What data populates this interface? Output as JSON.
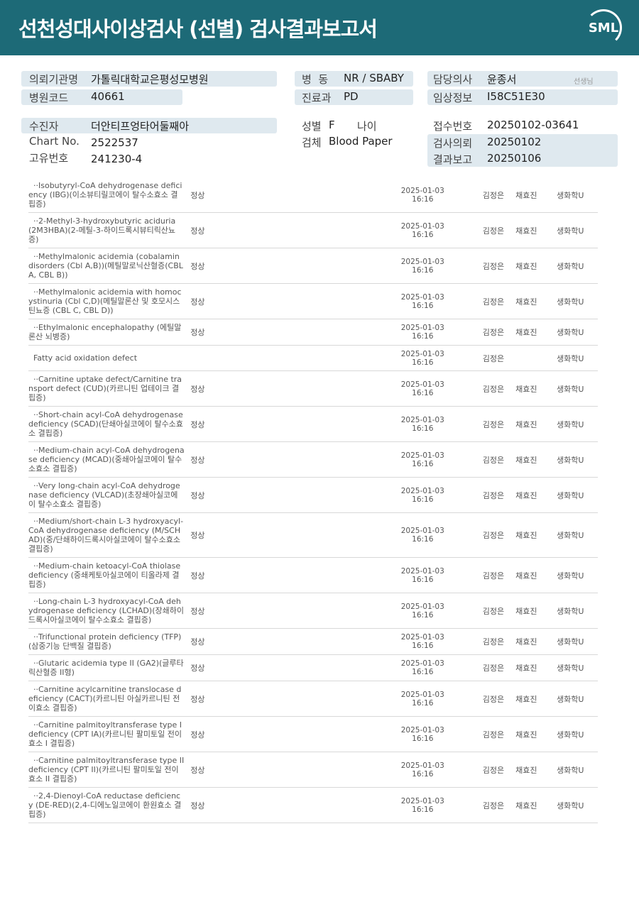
{
  "header": {
    "title": "선천성대사이상검사 (선별) 검사결과보고서",
    "logo": "SML"
  },
  "info": {
    "institution_label": "의뢰기관명",
    "institution": "가톨릭대학교은평성모병원",
    "code_label": "병원코드",
    "code": "40661",
    "ward_label": "병  동",
    "ward": "NR / SBABY",
    "dept_label": "진료과",
    "dept": "PD",
    "doctor_label": "담당의사",
    "doctor": "윤종서",
    "doctor_suffix": "선생님",
    "clinical_label": "임상정보",
    "clinical": "I58C51E30",
    "patient_label": "수진자",
    "patient": "더안티프엉타어둘째아",
    "chart_label": "Chart No.",
    "chart": "2522537",
    "uid_label": "고유번호",
    "uid": "241230-4",
    "sex_label": "성별",
    "sex": "F",
    "age_label": "나이",
    "specimen_label": "검체",
    "specimen": "Blood Paper",
    "receipt_label": "접수번호",
    "receipt": "20250102-03641",
    "request_label": "검사의뢰",
    "request": "20250102",
    "report_label": "결과보고",
    "report": "20250106"
  },
  "rows": [
    {
      "name": "  ··Isobutyryl-CoA dehydrogenase deficiency (IBG)(이소뷰티릴코에이 탈수소효소 결핍증)",
      "result": "정상",
      "date": "2025-01-03",
      "time": "16:16",
      "a": "김정은",
      "b": "채효진",
      "c": "생화학U"
    },
    {
      "name": "  ··2-Methyl-3-hydroxybutyric aciduria (2M3HBA)(2-메틸-3-하이드록시뷰티릭산뇨증)",
      "result": "정상",
      "date": "2025-01-03",
      "time": "16:16",
      "a": "김정은",
      "b": "채효진",
      "c": "생화학U"
    },
    {
      "name": "  ··Methylmalonic acidemia (cobalamin disorders (Cbl A,B))(메틸말로닉산혈증(CBL A, CBL B))",
      "result": "정상",
      "date": "2025-01-03",
      "time": "16:16",
      "a": "김정은",
      "b": "채효진",
      "c": "생화학U"
    },
    {
      "name": "  ··Methylmalonic acidemia with homocystinuria (Cbl C,D)(메틸말론산 및 호모시스틴뇨증 (CBL C, CBL D))",
      "result": "정상",
      "date": "2025-01-03",
      "time": "16:16",
      "a": "김정은",
      "b": "채효진",
      "c": "생화학U"
    },
    {
      "name": "  ··Ethylmalonic encephalopathy (에틸말론산 뇌병증)",
      "result": "정상",
      "date": "2025-01-03",
      "time": "16:16",
      "a": "김정은",
      "b": "채효진",
      "c": "생화학U"
    },
    {
      "name": "  Fatty acid oxidation defect",
      "result": "",
      "date": "2025-01-03",
      "time": "16:16",
      "a": "김정은",
      "b": "",
      "c": "생화학U"
    },
    {
      "name": "  ··Carnitine uptake defect/Carnitine transport defect (CUD)(카르니틴 업테이크 결핍증)",
      "result": "정상",
      "date": "2025-01-03",
      "time": "16:16",
      "a": "김정은",
      "b": "채효진",
      "c": "생화학U"
    },
    {
      "name": "  ··Short-chain acyl-CoA dehydrogenase deficiency (SCAD)(단쇄아실코에이 탈수소효소 결핍증)",
      "result": "정상",
      "date": "2025-01-03",
      "time": "16:16",
      "a": "김정은",
      "b": "채효진",
      "c": "생화학U"
    },
    {
      "name": "  ··Medium-chain acyl-CoA dehydrogenase deficiency (MCAD)(중쇄아실코에이 탈수소효소 결핍증)",
      "result": "정상",
      "date": "2025-01-03",
      "time": "16:16",
      "a": "김정은",
      "b": "채효진",
      "c": "생화학U"
    },
    {
      "name": "  ··Very long-chain acyl-CoA dehydrogenase deficiency (VLCAD)(초장쇄아실코에이 탈수소효소 결핍증)",
      "result": "정상",
      "date": "2025-01-03",
      "time": "16:16",
      "a": "김정은",
      "b": "채효진",
      "c": "생화학U"
    },
    {
      "name": "  ··Medium/short-chain L-3 hydroxyacyl-CoA dehydrogenase deficiency (M/SCHAD)(중/단쇄하이드록시아실코에이 탈수소효소 결핍증)",
      "result": "정상",
      "date": "2025-01-03",
      "time": "16:16",
      "a": "김정은",
      "b": "채효진",
      "c": "생화학U"
    },
    {
      "name": "  ··Medium-chain ketoacyl-CoA thiolase deficiency (중쇄케토아실코에이 티올라제 결핍증)",
      "result": "정상",
      "date": "2025-01-03",
      "time": "16:16",
      "a": "김정은",
      "b": "채효진",
      "c": "생화학U"
    },
    {
      "name": "  ··Long-chain L-3 hydroxyacyl-CoA dehydrogenase deficiency (LCHAD)(장쇄하이드록시아실코에이 탈수소효소 결핍증)",
      "result": "정상",
      "date": "2025-01-03",
      "time": "16:16",
      "a": "김정은",
      "b": "채효진",
      "c": "생화학U"
    },
    {
      "name": "  ··Trifunctional protein deficiency (TFP)(삼중기능 단백질 결핍증)",
      "result": "정상",
      "date": "2025-01-03",
      "time": "16:16",
      "a": "김정은",
      "b": "채효진",
      "c": "생화학U"
    },
    {
      "name": "  ··Glutaric acidemia type II (GA2)(글루타릭산혈증 II형)",
      "result": "정상",
      "date": "2025-01-03",
      "time": "16:16",
      "a": "김정은",
      "b": "채효진",
      "c": "생화학U"
    },
    {
      "name": "  ··Carnitine acylcarnitine translocase deficiency (CACT)(카르니틴 아실카르니틴 전이효소 결핍증)",
      "result": "정상",
      "date": "2025-01-03",
      "time": "16:16",
      "a": "김정은",
      "b": "채효진",
      "c": "생화학U"
    },
    {
      "name": "  ··Carnitine palmitoyltransferase type I deficiency (CPT IA)(카르니틴 팔미토일 전이효소 I 결핍증)",
      "result": "정상",
      "date": "2025-01-03",
      "time": "16:16",
      "a": "김정은",
      "b": "채효진",
      "c": "생화학U"
    },
    {
      "name": "  ··Carnitine palmitoyltransferase type II deficiency (CPT II)(카르니틴 팔미토일 전이효소 II 결핍증)",
      "result": "정상",
      "date": "2025-01-03",
      "time": "16:16",
      "a": "김정은",
      "b": "채효진",
      "c": "생화학U"
    },
    {
      "name": "  ··2,4-Dienoyl-CoA reductase deficiency (DE-RED)(2,4-디에노일코에이 환원효소 결핍증)",
      "result": "정상",
      "date": "2025-01-03",
      "time": "16:16",
      "a": "김정은",
      "b": "채효진",
      "c": "생화학U"
    }
  ]
}
